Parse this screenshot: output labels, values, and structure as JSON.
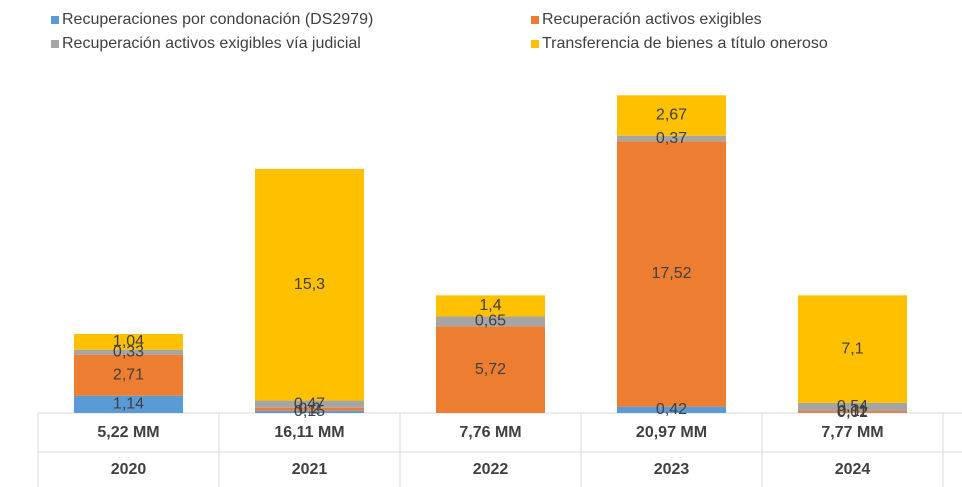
{
  "chart_data": {
    "type": "stacked_bar",
    "categories": [
      "2020",
      "2021",
      "2022",
      "2023",
      "2024"
    ],
    "category_totals": [
      "5,22 MM",
      "16,11 MM",
      "7,76 MM",
      "20,97 MM",
      "7,77 MM"
    ],
    "series": [
      {
        "name": "Recuperaciones por condonación (DS2979)",
        "color": "#5b9bd5",
        "values": [
          1.14,
          0.15,
          null,
          0.42,
          0.02
        ],
        "value_labels": [
          "1,14",
          "0,15",
          null,
          "0,42",
          "0,02"
        ]
      },
      {
        "name": "Recuperación activos exigibles",
        "color": "#ed7d31",
        "values": [
          2.71,
          0.2,
          5.72,
          17.52,
          0.11
        ],
        "value_labels": [
          "2,71",
          "0,2",
          "5,72",
          "17,52",
          "0,11"
        ]
      },
      {
        "name": "Recuperación activos exigibles vía judicial",
        "color": "#a5a5a5",
        "values": [
          0.33,
          0.47,
          0.65,
          0.37,
          0.54
        ],
        "value_labels": [
          "0,33",
          "0,47",
          "0,65",
          "0,37",
          "0,54"
        ]
      },
      {
        "name": "Transferencia de bienes a título oneroso",
        "color": "#ffc000",
        "values": [
          1.04,
          15.3,
          1.4,
          2.67,
          7.1
        ],
        "value_labels": [
          "1,04",
          "15,3",
          "1,4",
          "2,67",
          "7,1"
        ]
      }
    ],
    "ylim": [
      0,
      21
    ]
  }
}
